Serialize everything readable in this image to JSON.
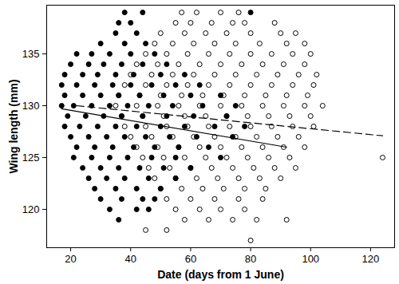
{
  "chart_data": {
    "type": "scatter",
    "x_label": "Date (days from 1 June)",
    "y_label": "Wing length (mm)",
    "xlim": [
      12,
      128
    ],
    "ylim": [
      116.3,
      139.7
    ],
    "xticks": [
      20,
      40,
      60,
      80,
      100,
      120
    ],
    "yticks": [
      120,
      125,
      130,
      135
    ],
    "grid": false,
    "series": [
      {
        "type": "scatter",
        "marker": "open",
        "color": "#000000",
        "x": [
          57,
          62,
          70,
          76,
          55,
          60,
          67,
          74,
          78,
          88,
          50,
          58,
          65,
          72,
          80,
          90,
          95,
          48,
          54,
          61,
          68,
          75,
          83,
          92,
          98,
          45,
          52,
          59,
          66,
          73,
          80,
          87,
          94,
          100,
          42,
          49,
          56,
          63,
          70,
          77,
          84,
          91,
          98,
          40,
          47,
          54,
          61,
          68,
          75,
          82,
          89,
          96,
          102,
          38,
          45,
          52,
          59,
          66,
          73,
          80,
          87,
          94,
          101,
          36,
          43,
          50,
          57,
          64,
          71,
          78,
          85,
          92,
          99,
          35,
          42,
          49,
          56,
          63,
          70,
          77,
          84,
          91,
          98,
          104,
          37,
          44,
          51,
          58,
          65,
          72,
          79,
          86,
          93,
          100,
          38,
          45,
          52,
          59,
          66,
          73,
          80,
          87,
          94,
          101,
          40,
          47,
          54,
          61,
          68,
          75,
          82,
          89,
          96,
          42,
          49,
          56,
          63,
          70,
          77,
          84,
          91,
          98,
          44,
          51,
          58,
          65,
          72,
          79,
          86,
          93,
          124,
          46,
          53,
          60,
          67,
          74,
          81,
          88,
          95,
          48,
          55,
          62,
          69,
          76,
          83,
          90,
          50,
          57,
          64,
          71,
          78,
          85,
          52,
          60,
          68,
          76,
          84,
          55,
          63,
          70,
          78,
          58,
          66,
          74,
          82,
          92,
          45,
          52,
          80
        ],
        "values": [
          139,
          139,
          139,
          139,
          138,
          138,
          138,
          138,
          138,
          138,
          137,
          137,
          137,
          137,
          137,
          137,
          137,
          136,
          136,
          136,
          136,
          136,
          136,
          136,
          136,
          135,
          135,
          135,
          135,
          135,
          135,
          135,
          135,
          135,
          134,
          134,
          134,
          134,
          134,
          134,
          134,
          134,
          134,
          133,
          133,
          133,
          133,
          133,
          133,
          133,
          133,
          133,
          133,
          132,
          132,
          132,
          132,
          132,
          132,
          132,
          132,
          132,
          132,
          131,
          131,
          131,
          131,
          131,
          131,
          131,
          131,
          131,
          131,
          130,
          130,
          130,
          130,
          130,
          130,
          130,
          130,
          130,
          130,
          130,
          129,
          129,
          129,
          129,
          129,
          129,
          129,
          129,
          129,
          129,
          128,
          128,
          128,
          128,
          128,
          128,
          128,
          128,
          128,
          128,
          127,
          127,
          127,
          127,
          127,
          127,
          127,
          127,
          127,
          126,
          126,
          126,
          126,
          126,
          126,
          126,
          126,
          126,
          125,
          125,
          125,
          125,
          125,
          125,
          125,
          125,
          125,
          124,
          124,
          124,
          124,
          124,
          124,
          124,
          124,
          123,
          123,
          123,
          123,
          123,
          123,
          123,
          122,
          122,
          122,
          122,
          122,
          122,
          121,
          121,
          121,
          121,
          121,
          120,
          120,
          120,
          120,
          119,
          119,
          119,
          119,
          119,
          118,
          118,
          117
        ]
      },
      {
        "type": "scatter",
        "marker": "filled",
        "color": "#000000",
        "x": [
          38,
          44,
          80,
          36,
          40,
          35,
          42,
          30,
          38,
          45,
          22,
          27,
          33,
          40,
          48,
          20,
          26,
          31,
          37,
          44,
          52,
          18,
          24,
          29,
          35,
          41,
          50,
          58,
          17,
          22,
          28,
          34,
          40,
          47,
          55,
          63,
          18,
          24,
          30,
          36,
          43,
          51,
          60,
          70,
          17,
          21,
          27,
          33,
          39,
          46,
          54,
          64,
          75,
          19,
          25,
          31,
          37,
          44,
          52,
          61,
          72,
          18,
          23,
          29,
          35,
          42,
          50,
          58,
          68,
          78,
          20,
          26,
          32,
          38,
          45,
          53,
          62,
          74,
          22,
          28,
          34,
          41,
          48,
          56,
          66,
          21,
          27,
          33,
          39,
          47,
          55,
          70,
          24,
          30,
          36,
          43,
          51,
          60,
          26,
          32,
          38,
          46,
          55,
          28,
          35,
          42,
          50,
          30,
          37,
          44,
          48,
          33,
          42,
          46,
          36
        ],
        "values": [
          139,
          139,
          139,
          138,
          138,
          137,
          137,
          136,
          136,
          136,
          135,
          135,
          135,
          135,
          135,
          134,
          134,
          134,
          134,
          134,
          134,
          133,
          133,
          133,
          133,
          133,
          133,
          133,
          132,
          132,
          132,
          132,
          132,
          132,
          132,
          132,
          131,
          131,
          131,
          131,
          131,
          131,
          131,
          131,
          130,
          130,
          130,
          130,
          130,
          130,
          130,
          130,
          130,
          129,
          129,
          129,
          129,
          129,
          129,
          129,
          129,
          128,
          128,
          128,
          128,
          128,
          128,
          128,
          128,
          128,
          127,
          127,
          127,
          127,
          127,
          127,
          127,
          127,
          126,
          126,
          126,
          126,
          126,
          126,
          126,
          125,
          125,
          125,
          125,
          125,
          125,
          125,
          124,
          124,
          124,
          124,
          124,
          124,
          123,
          123,
          123,
          123,
          123,
          122,
          122,
          122,
          122,
          121,
          121,
          121,
          121,
          120,
          120,
          120,
          119
        ]
      },
      {
        "type": "line",
        "line_style": "solid",
        "color": "#000000",
        "x": [
          17,
          92
        ],
        "values": [
          129.7,
          126.0
        ]
      },
      {
        "type": "line",
        "line_style": "dashed",
        "color": "#000000",
        "x": [
          22,
          124
        ],
        "values": [
          130.0,
          127.1
        ]
      }
    ]
  }
}
